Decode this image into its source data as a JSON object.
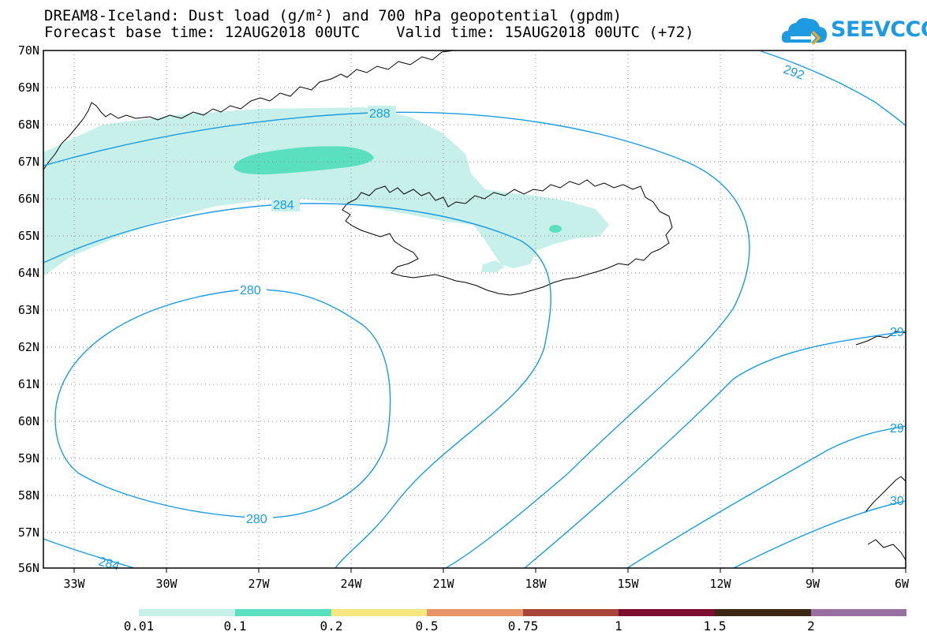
{
  "title": {
    "line1": "DREAM8-Iceland: Dust load (g/m²) and 700 hPa geopotential (gpdm)",
    "line2": "Forecast base time: 12AUG2018 00UTC    Valid time: 15AUG2018 00UTC (+72)"
  },
  "logo": {
    "text": "SEEVCCC",
    "icon": "cloud-logo-icon",
    "color": "#1e9be0"
  },
  "axes": {
    "lat_labels": [
      "70N",
      "69N",
      "68N",
      "67N",
      "66N",
      "65N",
      "64N",
      "63N",
      "62N",
      "61N",
      "60N",
      "59N",
      "58N",
      "57N",
      "56N"
    ],
    "lon_labels": [
      "33W",
      "30W",
      "27W",
      "24W",
      "21W",
      "18W",
      "15W",
      "12W",
      "9W",
      "6W"
    ]
  },
  "contours": {
    "color": "#1b9be0",
    "labels": [
      "288",
      "284",
      "280",
      "280",
      "284",
      "292",
      "29",
      "29",
      "30"
    ]
  },
  "dust_colors": {
    "light": "#c7f0ea",
    "medium": "#5ae0bf"
  },
  "colorbar": {
    "colors": [
      "#c7f0ea",
      "#5ae0bf",
      "#f7e77f",
      "#e8946b",
      "#a8453a",
      "#7c0e2f",
      "#3d2614",
      "#9a6fa1"
    ],
    "labels": [
      "0.01",
      "0.1",
      "0.2",
      "0.5",
      "0.75",
      "1",
      "1.5",
      "2"
    ]
  }
}
